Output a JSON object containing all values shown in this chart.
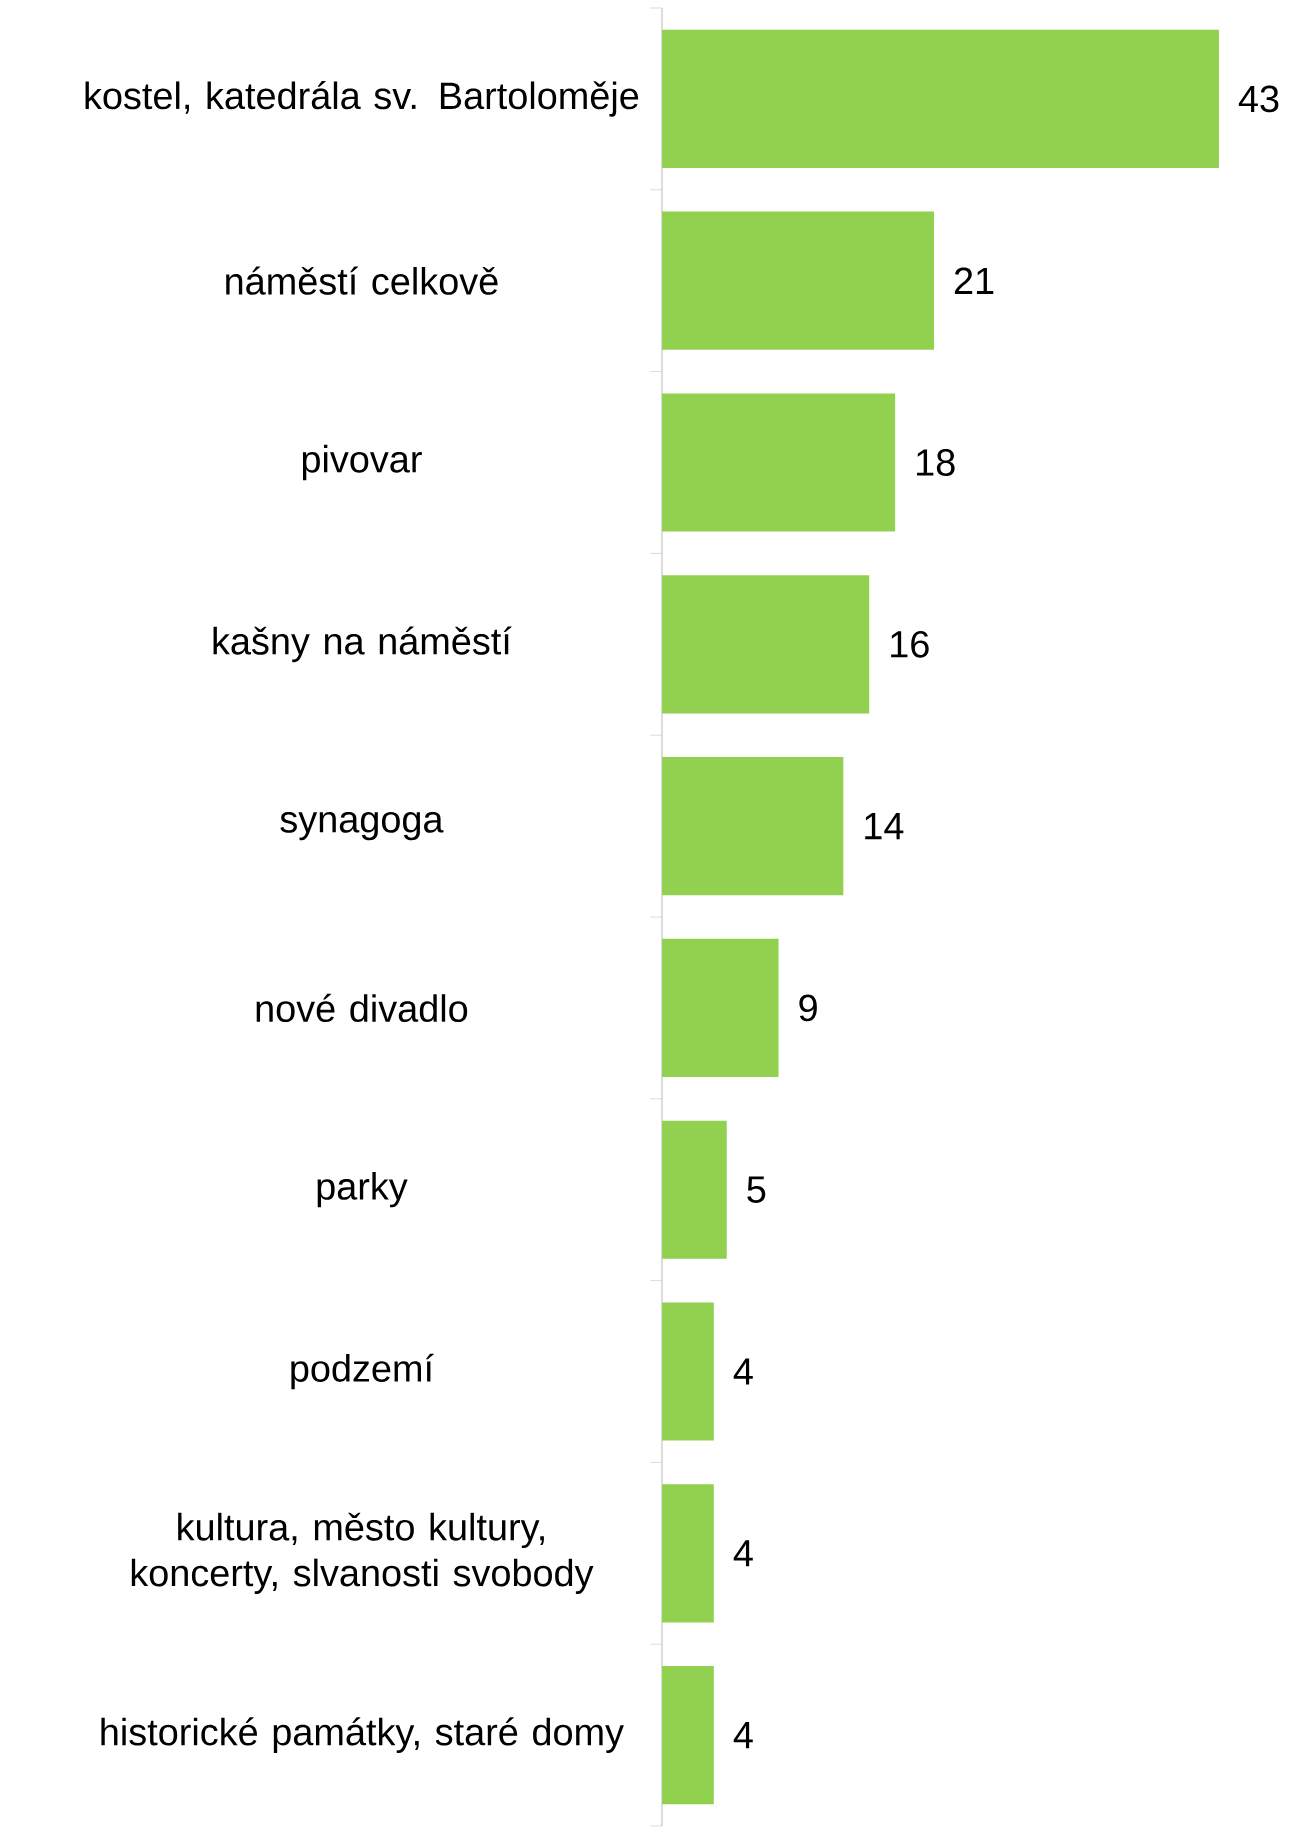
{
  "chart_data": {
    "type": "bar",
    "orientation": "horizontal",
    "categories": [
      "kostel, katedrála sv. Bartoloměje",
      "náměstí celkově",
      "pivovar",
      "kašny na náměstí",
      "synagoga",
      "nové divadlo",
      "parky",
      "podzemí",
      "kultura, město kultury, koncerty, slvanosti svobody",
      "historické památky, staré domy"
    ],
    "values": [
      43,
      21,
      18,
      16,
      14,
      9,
      5,
      4,
      4,
      4
    ],
    "color": "#92d050",
    "data_labels": true
  }
}
